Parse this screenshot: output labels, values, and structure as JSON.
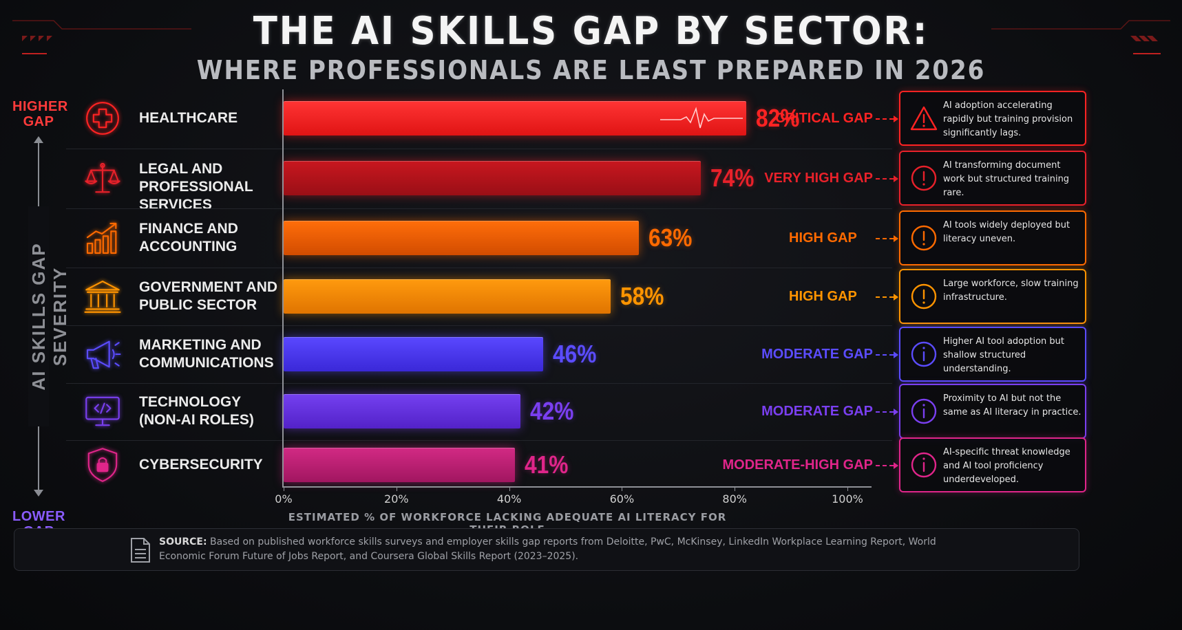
{
  "title": "THE AI SKILLS GAP BY SECTOR:",
  "subtitle": "WHERE PROFESSIONALS ARE LEAST PREPARED IN 2026",
  "severity_axis": {
    "label": "AI SKILLS GAP SEVERITY",
    "top": "HIGHER GAP",
    "bottom": "LOWER GAP"
  },
  "colors": {
    "critical": "#ff2323",
    "very_high": "#c9161f",
    "high_orange": "#ff6a00",
    "high_amber": "#ff9400",
    "moderate_blue": "#4c3cf2",
    "moderate_violet": "#6a33e8",
    "moderate_high_pink": "#c8267e"
  },
  "chart_data": {
    "type": "bar",
    "orientation": "horizontal",
    "title": "THE AI SKILLS GAP BY SECTOR:",
    "subtitle": "WHERE PROFESSIONALS ARE LEAST PREPARED IN 2026",
    "xlabel": "ESTIMATED % OF WORKFORCE LACKING ADEQUATE AI LITERACY FOR THEIR ROLE",
    "ylabel": "AI SKILLS GAP SEVERITY",
    "xlim": [
      0,
      100
    ],
    "x_ticks": [
      "0%",
      "20%",
      "40%",
      "60%",
      "80%",
      "100%"
    ],
    "categories": [
      "HEALTHCARE",
      "LEGAL AND PROFESSIONAL SERVICES",
      "FINANCE AND ACCOUNTING",
      "GOVERNMENT AND PUBLIC SECTOR",
      "MARKETING AND COMMUNICATIONS",
      "TECHNOLOGY (NON-AI ROLES)",
      "CYBERSECURITY"
    ],
    "values": [
      82,
      74,
      63,
      58,
      46,
      42,
      41
    ],
    "grid": false
  },
  "sectors": [
    {
      "line1": "HEALTHCARE",
      "line2": "",
      "pct": "82%",
      "gap": "CRITICAL GAP",
      "note": "AI adoption accelerating rapidly but training provision significantly lags.",
      "icon": "medical-cross-icon",
      "note_icon": "warning-triangle-icon",
      "color": "#ff2323",
      "bar_top": "#ff3434",
      "bar_bottom": "#e01414"
    },
    {
      "line1": "LEGAL AND",
      "line2": "PROFESSIONAL SERVICES",
      "pct": "74%",
      "gap": "VERY HIGH GAP",
      "note": "AI transforming document work but structured training rare.",
      "icon": "scales-of-justice-icon",
      "note_icon": "exclamation-circle-icon",
      "color": "#e8212a",
      "bar_top": "#c8171f",
      "bar_bottom": "#9a0f16"
    },
    {
      "line1": "FINANCE AND",
      "line2": "ACCOUNTING",
      "pct": "63%",
      "gap": "HIGH GAP",
      "note": "AI tools widely deployed but literacy uneven.",
      "icon": "growth-chart-icon",
      "note_icon": "exclamation-circle-icon",
      "color": "#ff6a00",
      "bar_top": "#ff6e0a",
      "bar_bottom": "#d24c00"
    },
    {
      "line1": "GOVERNMENT AND",
      "line2": "PUBLIC SECTOR",
      "pct": "58%",
      "gap": "HIGH GAP",
      "note": "Large workforce, slow training infrastructure.",
      "icon": "government-building-icon",
      "note_icon": "exclamation-circle-icon",
      "color": "#ff9400",
      "bar_top": "#ff9a0e",
      "bar_bottom": "#e07400"
    },
    {
      "line1": "MARKETING AND",
      "line2": "COMMUNICATIONS",
      "pct": "46%",
      "gap": "MODERATE GAP",
      "note": "Higher AI tool adoption but shallow structured understanding.",
      "icon": "megaphone-icon",
      "note_icon": "info-circle-icon",
      "color": "#5b4cff",
      "bar_top": "#5a48ff",
      "bar_bottom": "#3a28d8"
    },
    {
      "line1": "TECHNOLOGY",
      "line2": "(NON-AI ROLES)",
      "pct": "42%",
      "gap": "MODERATE GAP",
      "note": "Proximity to AI but not the same as AI literacy in practice.",
      "icon": "code-monitor-icon",
      "note_icon": "info-circle-icon",
      "color": "#7a3ff0",
      "bar_top": "#7440f0",
      "bar_bottom": "#5322c8"
    },
    {
      "line1": "CYBERSECURITY",
      "line2": "",
      "pct": "41%",
      "gap": "MODERATE-HIGH GAP",
      "note": "AI-specific threat knowledge and AI tool proficiency underdeveloped.",
      "icon": "shield-lock-icon",
      "note_icon": "info-circle-icon",
      "color": "#e0258a",
      "bar_top": "#d22a84",
      "bar_bottom": "#a11660"
    }
  ],
  "source": {
    "label": "SOURCE:",
    "text": "Based on published workforce skills surveys and employer skills gap reports from Deloitte, PwC, McKinsey, LinkedIn Workplace Learning Report, World Economic Forum Future of Jobs Report, and Coursera Global Skills Report (2023–2025)."
  }
}
